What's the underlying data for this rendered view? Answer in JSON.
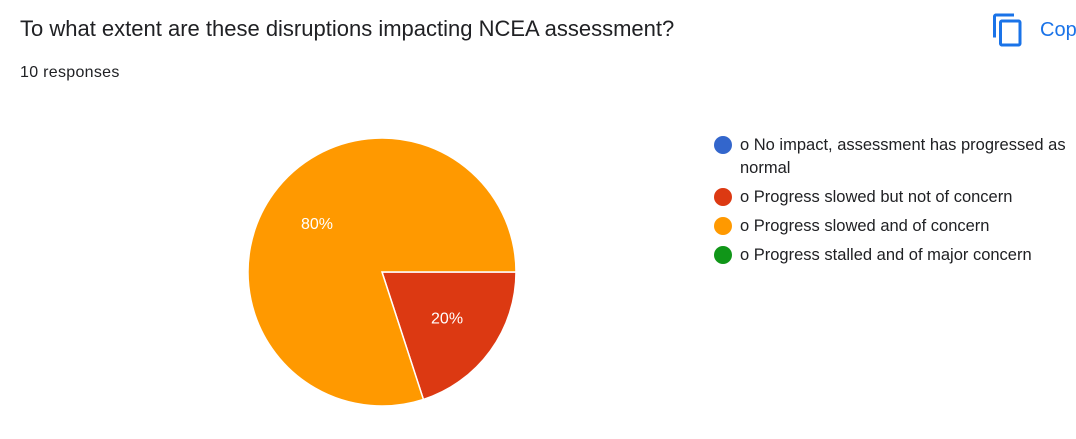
{
  "header": {
    "title": "To what extent are these disruptions impacting NCEA assessment?",
    "responses": "10 responses",
    "copy_label": "Copy"
  },
  "chart_data": {
    "type": "pie",
    "categories": [
      "o No impact, assessment has progressed as normal",
      "o Progress slowed but not of concern",
      "o Progress slowed and of concern",
      "o Progress stalled and of major concern"
    ],
    "values": [
      0,
      2,
      8,
      0
    ],
    "percent_labels": [
      "0%",
      "20%",
      "80%",
      "0%"
    ],
    "colors": [
      "#3366cc",
      "#dc3912",
      "#ff9900",
      "#109618"
    ],
    "legend_position": "right"
  }
}
